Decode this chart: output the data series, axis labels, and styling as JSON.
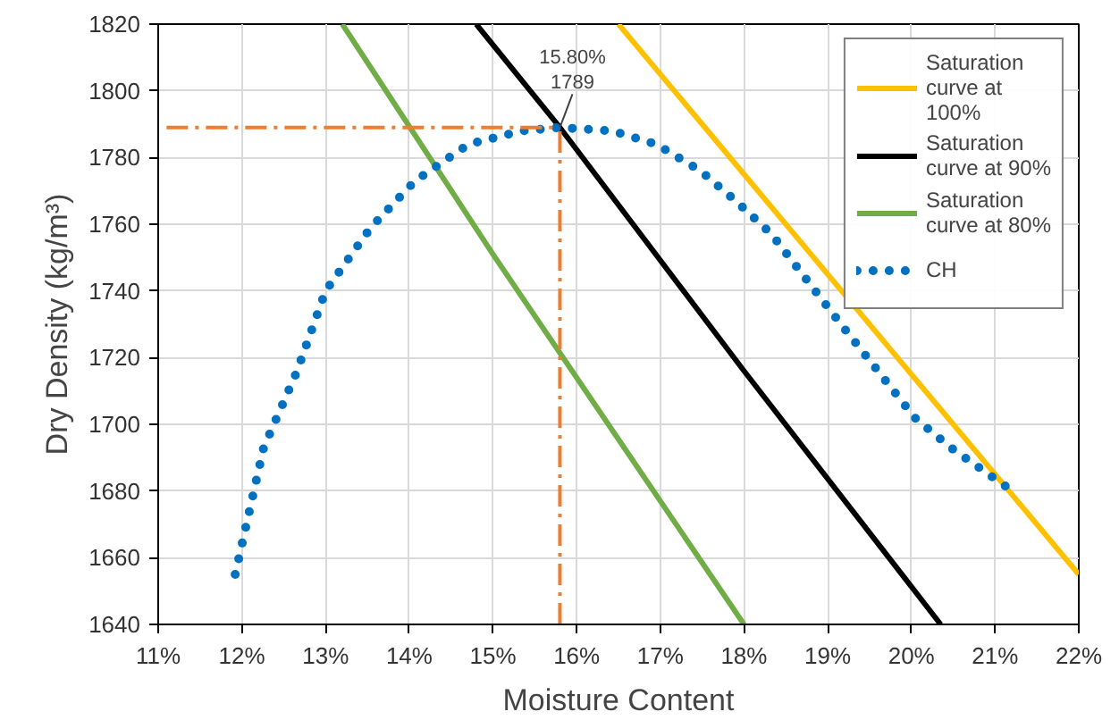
{
  "chart_data": {
    "type": "line",
    "xlabel": "Moisture Content",
    "ylabel": "Dry Density (kg/m³)",
    "xlim": [
      11,
      22
    ],
    "ylim": [
      1640,
      1820
    ],
    "xticks": [
      {
        "value": 11,
        "label": "11%"
      },
      {
        "value": 12,
        "label": "12%"
      },
      {
        "value": 13,
        "label": "13%"
      },
      {
        "value": 14,
        "label": "14%"
      },
      {
        "value": 15,
        "label": "15%"
      },
      {
        "value": 16,
        "label": "16%"
      },
      {
        "value": 17,
        "label": "17%"
      },
      {
        "value": 18,
        "label": "18%"
      },
      {
        "value": 19,
        "label": "19%"
      },
      {
        "value": 20,
        "label": "20%"
      },
      {
        "value": 21,
        "label": "21%"
      },
      {
        "value": 22,
        "label": "22%"
      }
    ],
    "yticks": [
      1640,
      1660,
      1680,
      1700,
      1720,
      1740,
      1760,
      1780,
      1800,
      1820
    ],
    "grid": true,
    "legend": "top right",
    "series": [
      {
        "name": "Saturation curve at 100%",
        "color": "#ffc000",
        "line_style": "solid",
        "x": [
          16.5,
          18,
          20,
          22
        ],
        "values": [
          1820,
          1775,
          1715,
          1655
        ]
      },
      {
        "name": "Saturation curve at 90%",
        "color": "#000000",
        "line_style": "solid",
        "x": [
          14.8,
          15.8,
          18,
          20.35
        ],
        "values": [
          1820,
          1789,
          1716,
          1640
        ]
      },
      {
        "name": "Saturation curve at 80%",
        "color": "#70ad47",
        "line_style": "solid",
        "x": [
          13.2,
          15,
          18
        ],
        "values": [
          1820,
          1751,
          1640
        ]
      },
      {
        "name": "CH",
        "color": "#0070c0",
        "line_style": "dotted",
        "x": [
          11.92,
          12.26,
          12.66,
          13.0,
          13.54,
          14.07,
          14.71,
          15.35,
          15.8,
          16.42,
          16.95,
          17.48,
          17.9,
          18.33,
          18.76,
          19.19,
          19.6,
          20.04,
          20.47,
          21.15
        ],
        "values": [
          1655,
          1693,
          1716,
          1740,
          1759,
          1773,
          1784,
          1788,
          1789,
          1788,
          1784,
          1776,
          1767,
          1757,
          1743,
          1729,
          1716,
          1702,
          1693,
          1681
        ]
      },
      {
        "color": "#ed7d31",
        "line_style": "dashed",
        "x": [
          11.1,
          15.8
        ],
        "values": [
          1789,
          1789
        ]
      },
      {
        "color": "#ed7d31",
        "line_style": "dashed",
        "x": [
          15.8,
          15.8
        ],
        "values": [
          1640,
          1789
        ]
      }
    ],
    "annotations": [
      {
        "text": "15.80%\n1789",
        "x": 15.8,
        "y": 1789
      }
    ]
  }
}
